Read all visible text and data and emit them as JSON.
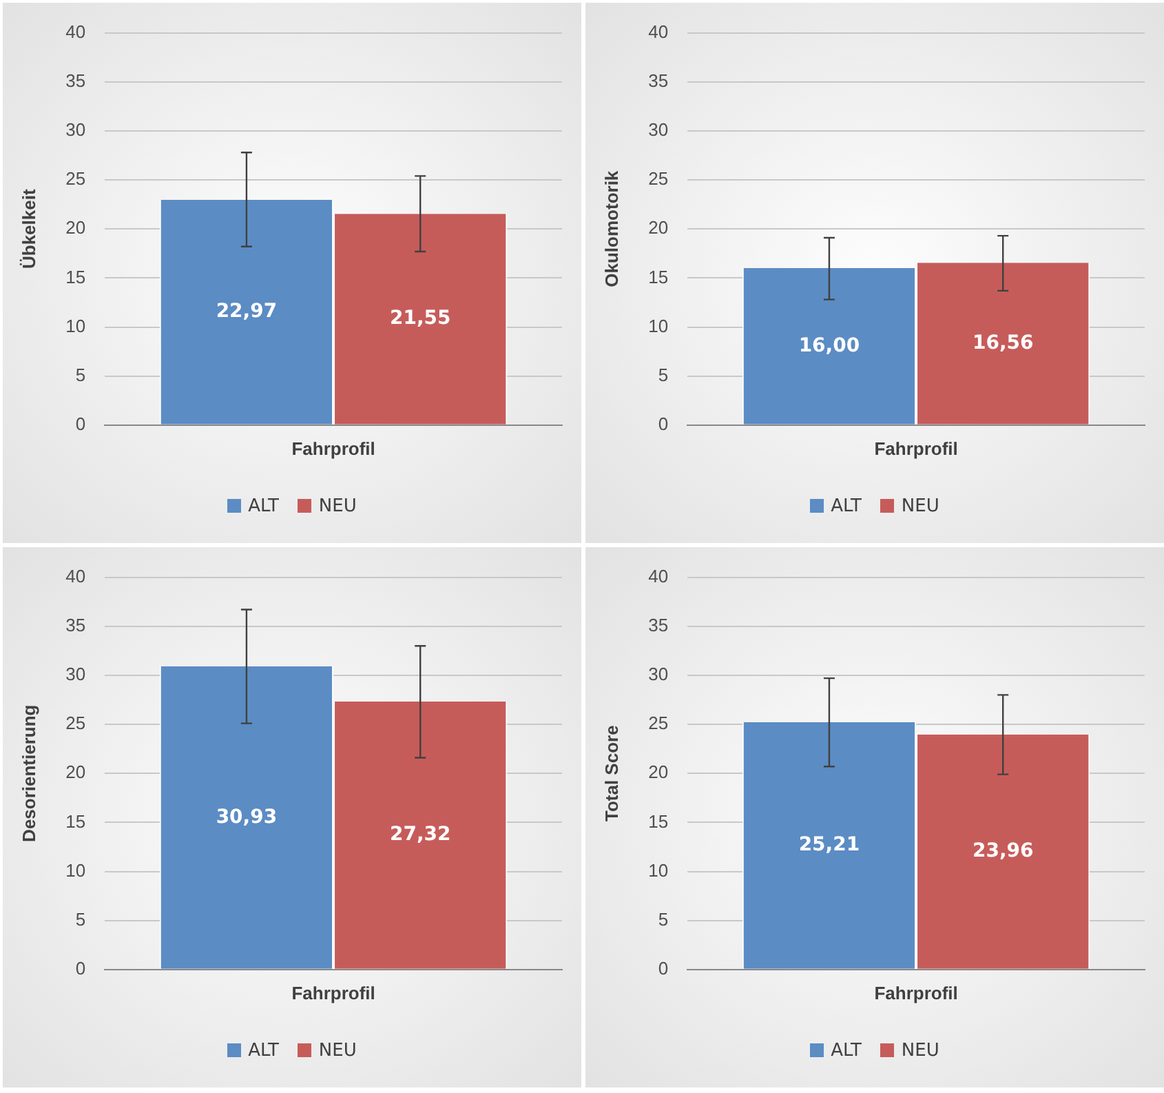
{
  "chart_data": [
    {
      "type": "bar",
      "ylabel": "Übkelkeit",
      "categories": [
        "Fahrprofil"
      ],
      "ylim": [
        0,
        40
      ],
      "yticks": [
        0,
        5,
        10,
        15,
        20,
        25,
        30,
        35,
        40
      ],
      "grid": "y",
      "legend": "bottom",
      "series": [
        {
          "name": "ALT",
          "color": "#5b8cc4",
          "values": [
            22.97
          ],
          "value_labels": [
            "22,97"
          ],
          "errors": [
            [
              18.2,
              27.8
            ]
          ]
        },
        {
          "name": "NEU",
          "color": "#c65c5a",
          "values": [
            21.55
          ],
          "value_labels": [
            "21,55"
          ],
          "errors": [
            [
              17.7,
              25.4
            ]
          ]
        }
      ]
    },
    {
      "type": "bar",
      "ylabel": "Okulomotorik",
      "categories": [
        "Fahrprofil"
      ],
      "ylim": [
        0,
        40
      ],
      "yticks": [
        0,
        5,
        10,
        15,
        20,
        25,
        30,
        35,
        40
      ],
      "grid": "y",
      "legend": "bottom",
      "series": [
        {
          "name": "ALT",
          "color": "#5b8cc4",
          "values": [
            16.0
          ],
          "value_labels": [
            "16,00"
          ],
          "errors": [
            [
              12.8,
              19.1
            ]
          ]
        },
        {
          "name": "NEU",
          "color": "#c65c5a",
          "values": [
            16.56
          ],
          "value_labels": [
            "16,56"
          ],
          "errors": [
            [
              13.7,
              19.3
            ]
          ]
        }
      ]
    },
    {
      "type": "bar",
      "ylabel": "Desorientierung",
      "categories": [
        "Fahrprofil"
      ],
      "ylim": [
        0,
        40
      ],
      "yticks": [
        0,
        5,
        10,
        15,
        20,
        25,
        30,
        35,
        40
      ],
      "grid": "y",
      "legend": "bottom",
      "series": [
        {
          "name": "ALT",
          "color": "#5b8cc4",
          "values": [
            30.93
          ],
          "value_labels": [
            "30,93"
          ],
          "errors": [
            [
              25.1,
              36.7
            ]
          ]
        },
        {
          "name": "NEU",
          "color": "#c65c5a",
          "values": [
            27.32
          ],
          "value_labels": [
            "27,32"
          ],
          "errors": [
            [
              21.6,
              33.0
            ]
          ]
        }
      ]
    },
    {
      "type": "bar",
      "ylabel": "Total Score",
      "categories": [
        "Fahrprofil"
      ],
      "ylim": [
        0,
        40
      ],
      "yticks": [
        0,
        5,
        10,
        15,
        20,
        25,
        30,
        35,
        40
      ],
      "grid": "y",
      "legend": "bottom",
      "series": [
        {
          "name": "ALT",
          "color": "#5b8cc4",
          "values": [
            25.21
          ],
          "value_labels": [
            "25,21"
          ],
          "errors": [
            [
              20.7,
              29.7
            ]
          ]
        },
        {
          "name": "NEU",
          "color": "#c65c5a",
          "values": [
            23.96
          ],
          "value_labels": [
            "23,96"
          ],
          "errors": [
            [
              19.9,
              28.0
            ]
          ]
        }
      ]
    }
  ]
}
